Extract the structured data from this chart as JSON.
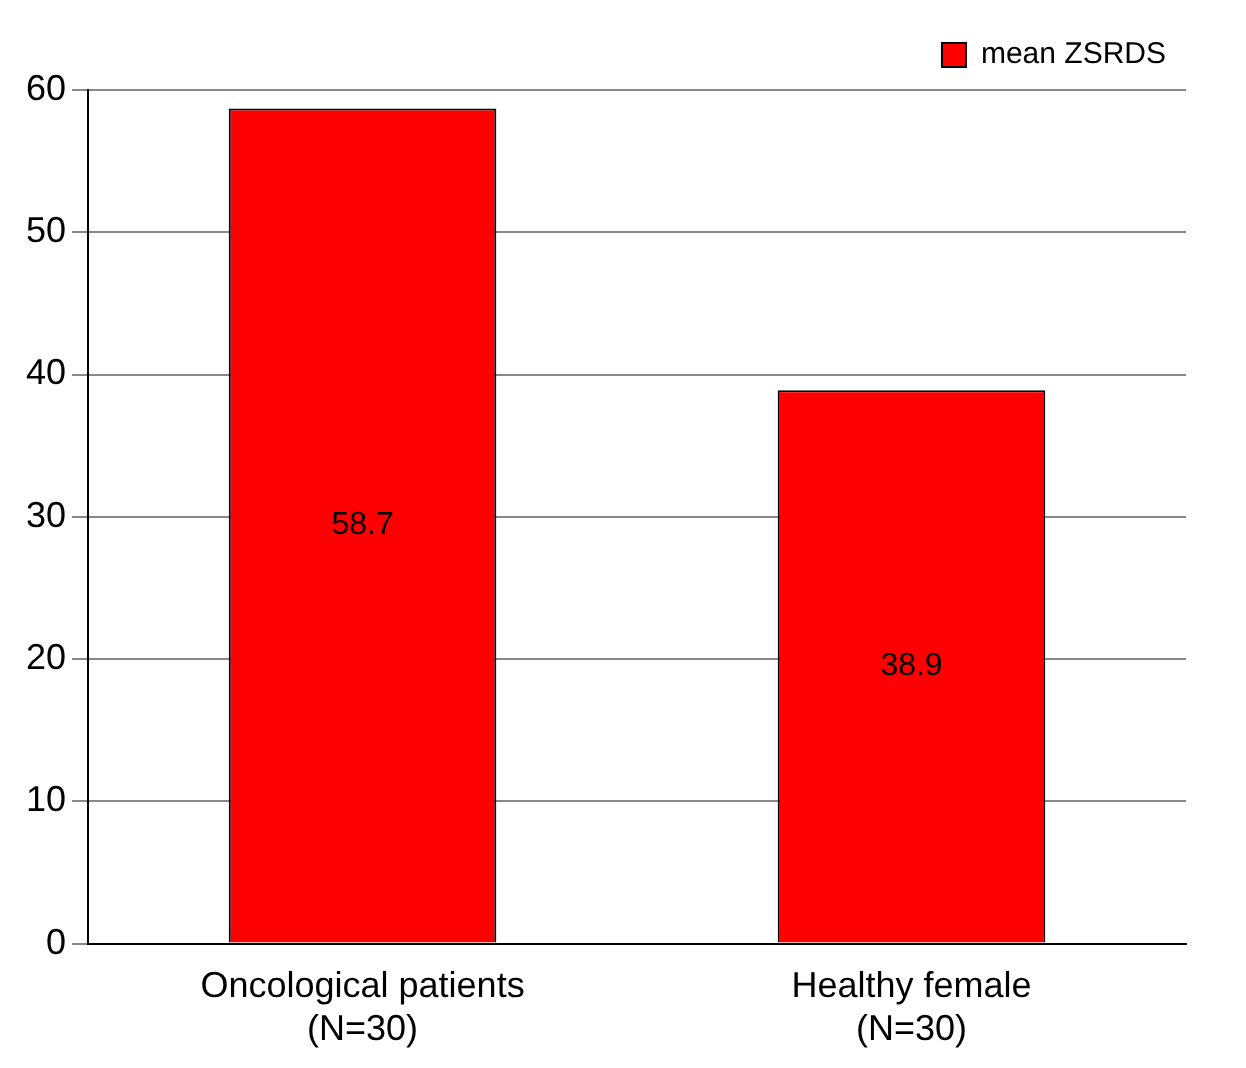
{
  "chart_data": {
    "type": "bar",
    "categories": [
      "Oncological patients (N=30)",
      "Healthy female (N=30)"
    ],
    "series": [
      {
        "name": "mean ZSRDS",
        "color": "#ff0000",
        "values": [
          58.7,
          38.9
        ]
      }
    ],
    "ylim": [
      0,
      60
    ],
    "yticks": [
      0,
      10,
      20,
      30,
      40,
      50,
      60
    ],
    "grid": "y",
    "legend": "top right",
    "data_labels": true
  }
}
